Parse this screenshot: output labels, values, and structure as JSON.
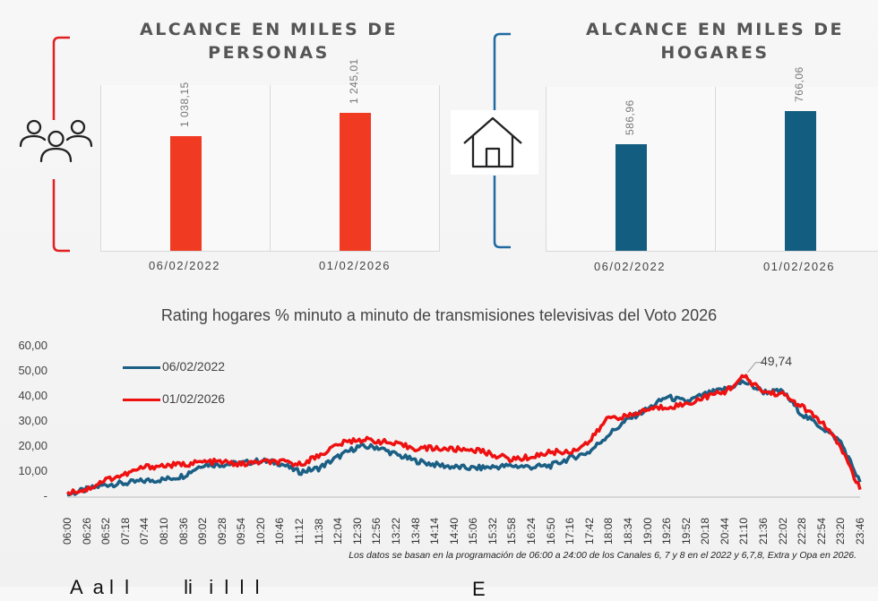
{
  "panels": {
    "persons": {
      "title_line1": "ALCANCE EN MILES DE",
      "title_line2": "PERSONAS",
      "icon": "people-icon",
      "color": "#f03a22",
      "bracket_color": "#e02020"
    },
    "households": {
      "title_line1": "ALCANCE EN MILES DE",
      "title_line2": "HOGARES",
      "icon": "house-icon",
      "color": "#135e80",
      "bracket_color": "#1f6aa0"
    }
  },
  "line_chart": {
    "title": "Rating hogares % minuto a minuto de transmisiones televisivas del Voto 2026",
    "peak_label": "49,74",
    "footnote": "Los datos se basan en la programación de 06:00 a 24:00 de los Canales 6, 7 y 8 en el 2022 y 6,7,8, Extra y Opa en 2026.",
    "y_ticks": [
      "60,00",
      "50,00",
      "40,00",
      "30,00",
      "20,00",
      "10,00",
      "-"
    ],
    "colors": {
      "s2022": "#1b5f85",
      "s2026": "#ee1111"
    }
  },
  "bottom_text": {
    "left": "A  a l  l          li   i  l  l  l",
    "right": "E"
  },
  "chart_data": [
    {
      "type": "bar",
      "title": "ALCANCE EN MILES DE PERSONAS",
      "categories": [
        "06/02/2022",
        "01/02/2026"
      ],
      "values": [
        1038.15,
        1245.01
      ],
      "value_labels": [
        "1 038,15",
        "1 245,01"
      ],
      "ylim": [
        0,
        1500
      ]
    },
    {
      "type": "bar",
      "title": "ALCANCE EN MILES DE HOGARES",
      "categories": [
        "06/02/2022",
        "01/02/2026"
      ],
      "values": [
        586.96,
        766.06
      ],
      "value_labels": [
        "586,96",
        "766,06"
      ],
      "ylim": [
        0,
        900
      ]
    },
    {
      "type": "line",
      "title": "Rating hogares % minuto a minuto de transmisiones televisivas del Voto 2026",
      "x_ticks": [
        "06:00",
        "06:26",
        "06:52",
        "07:18",
        "07:44",
        "08:10",
        "08:36",
        "09:02",
        "09:28",
        "09:54",
        "10:20",
        "10:46",
        "11:12",
        "11:38",
        "12:04",
        "12:30",
        "12:56",
        "13:22",
        "13:48",
        "14:14",
        "14:40",
        "15:06",
        "15:32",
        "15:58",
        "16:24",
        "16:50",
        "17:16",
        "17:42",
        "18:08",
        "18:34",
        "19:00",
        "19:26",
        "19:52",
        "20:18",
        "20:44",
        "21:10",
        "21:36",
        "22:02",
        "22:28",
        "22:54",
        "23:20",
        "23:46"
      ],
      "ylim": [
        0,
        60
      ],
      "series": [
        {
          "name": "06/02/2022",
          "values": [
            1,
            3,
            5,
            5.5,
            6.5,
            7,
            8.5,
            13,
            13,
            13.5,
            14.5,
            13.5,
            10,
            11.5,
            16,
            20,
            20,
            17,
            14.5,
            13,
            12,
            11.5,
            12,
            12.5,
            12,
            12.5,
            15.5,
            18,
            25,
            31,
            35,
            40,
            38,
            41,
            43,
            46,
            42,
            42,
            33,
            28,
            22,
            6
          ]
        },
        {
          "name": "01/02/2026",
          "values": [
            2,
            3,
            7,
            9,
            12,
            12.5,
            13,
            14,
            14,
            13,
            14,
            14,
            13,
            16.5,
            21,
            23,
            22.5,
            21,
            19.5,
            19.5,
            19,
            19,
            17,
            15,
            16,
            18,
            18,
            22,
            32,
            32,
            35,
            36,
            37,
            40,
            42,
            48,
            42,
            41,
            36,
            30,
            20,
            3
          ]
        }
      ],
      "annotation": {
        "label": "49,74",
        "x": "21:10",
        "y": 49.74
      }
    }
  ]
}
